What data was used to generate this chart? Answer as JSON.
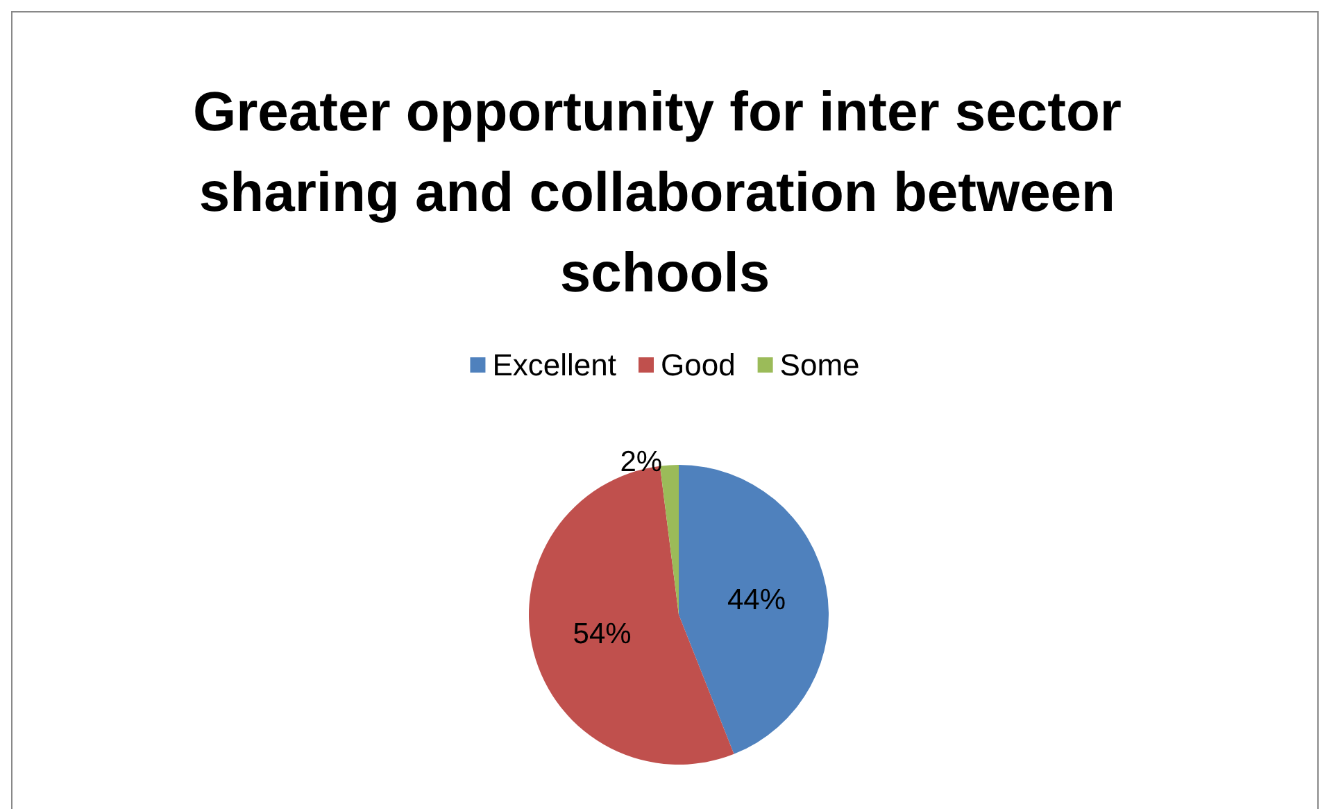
{
  "chart_data": {
    "type": "pie",
    "title": "Greater opportunity for inter sector sharing and collaboration between schools",
    "categories": [
      "Excellent",
      "Good",
      "Some"
    ],
    "values": [
      44,
      54,
      2
    ],
    "colors": [
      "#4f81bd",
      "#c0504d",
      "#9bbb59"
    ],
    "value_labels": [
      "44%",
      "54%",
      "2%"
    ],
    "legend": "top"
  }
}
